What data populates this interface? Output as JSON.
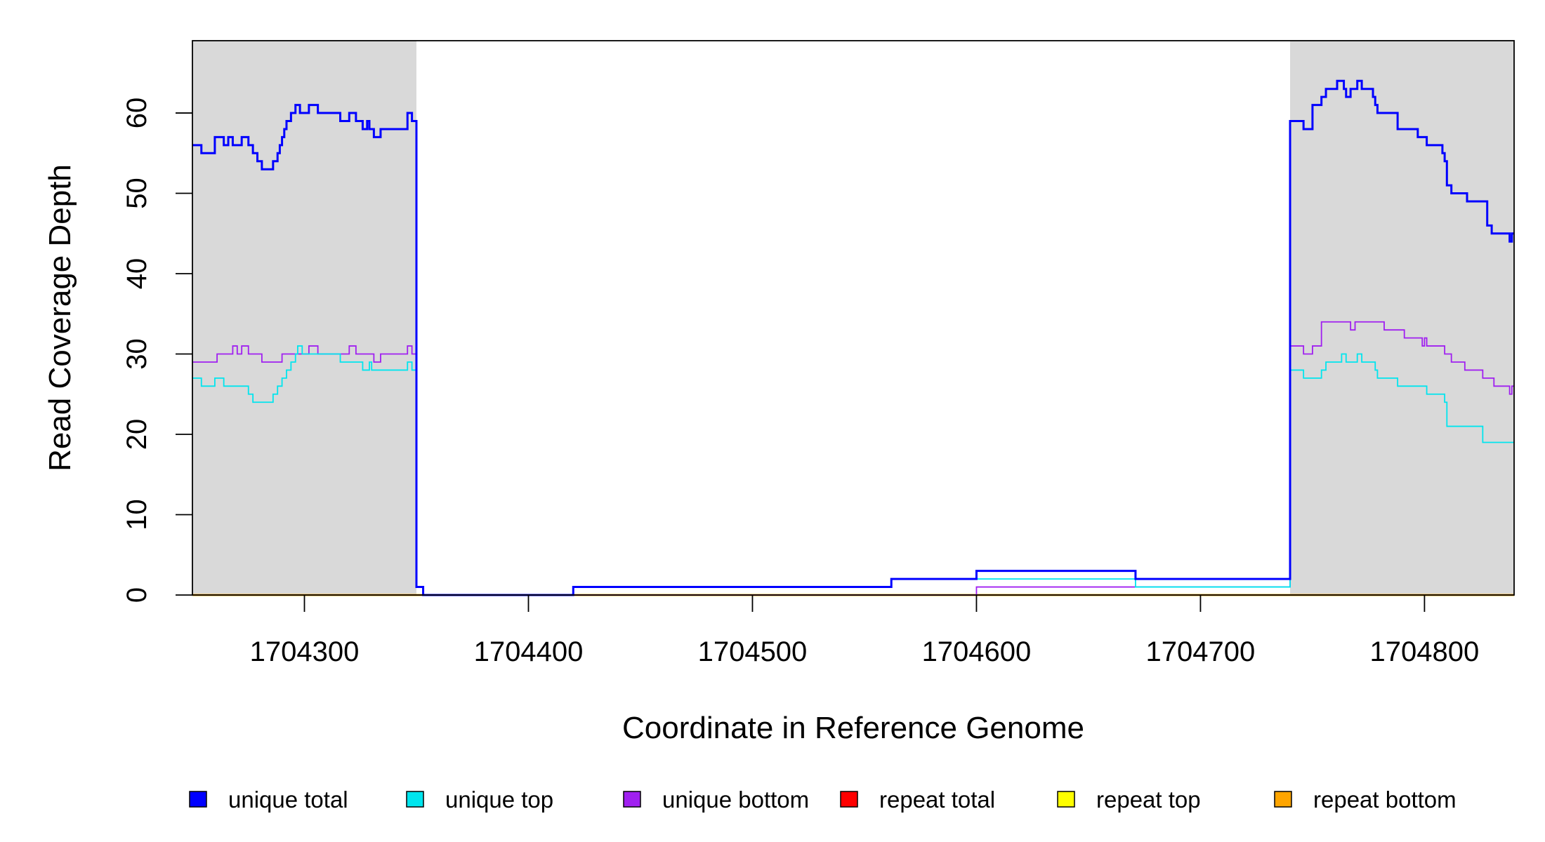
{
  "chart_data": {
    "type": "line",
    "title": "",
    "xlabel": "Coordinate in Reference Genome",
    "ylabel": "Read Coverage Depth",
    "xlim": [
      1704250,
      1704840
    ],
    "ylim": [
      0,
      69
    ],
    "xticks": [
      1704300,
      1704400,
      1704500,
      1704600,
      1704700,
      1704800
    ],
    "yticks": [
      0,
      10,
      20,
      30,
      40,
      50,
      60
    ],
    "shaded_regions": [
      [
        1704250,
        1704350
      ],
      [
        1704740,
        1704840
      ]
    ],
    "legend_position": "bottom",
    "series": [
      {
        "name": "unique total",
        "color": "#0000FF",
        "points": [
          [
            1704250,
            56
          ],
          [
            1704254,
            55
          ],
          [
            1704260,
            57
          ],
          [
            1704264,
            56
          ],
          [
            1704266,
            57
          ],
          [
            1704268,
            56
          ],
          [
            1704272,
            57
          ],
          [
            1704275,
            56
          ],
          [
            1704277,
            55
          ],
          [
            1704279,
            54
          ],
          [
            1704281,
            53
          ],
          [
            1704286,
            54
          ],
          [
            1704288,
            55
          ],
          [
            1704289,
            56
          ],
          [
            1704290,
            57
          ],
          [
            1704291,
            58
          ],
          [
            1704292,
            59
          ],
          [
            1704294,
            60
          ],
          [
            1704296,
            61
          ],
          [
            1704298,
            60
          ],
          [
            1704302,
            61
          ],
          [
            1704306,
            60
          ],
          [
            1704316,
            59
          ],
          [
            1704320,
            60
          ],
          [
            1704323,
            59
          ],
          [
            1704326,
            58
          ],
          [
            1704328,
            59
          ],
          [
            1704329,
            58
          ],
          [
            1704331,
            57
          ],
          [
            1704334,
            58
          ],
          [
            1704346,
            60
          ],
          [
            1704348,
            59
          ],
          [
            1704350,
            1
          ],
          [
            1704353,
            0
          ],
          [
            1704420,
            1
          ],
          [
            1704562,
            2
          ],
          [
            1704600,
            3
          ],
          [
            1704671,
            2
          ],
          [
            1704740,
            59
          ],
          [
            1704746,
            58
          ],
          [
            1704750,
            61
          ],
          [
            1704754,
            62
          ],
          [
            1704756,
            63
          ],
          [
            1704761,
            64
          ],
          [
            1704764,
            63
          ],
          [
            1704765,
            62
          ],
          [
            1704767,
            63
          ],
          [
            1704770,
            64
          ],
          [
            1704772,
            63
          ],
          [
            1704777,
            62
          ],
          [
            1704778,
            61
          ],
          [
            1704779,
            60
          ],
          [
            1704788,
            58
          ],
          [
            1704797,
            57
          ],
          [
            1704801,
            56
          ],
          [
            1704808,
            55
          ],
          [
            1704809,
            54
          ],
          [
            1704810,
            51
          ],
          [
            1704812,
            50
          ],
          [
            1704819,
            49
          ],
          [
            1704828,
            46
          ],
          [
            1704830,
            45
          ],
          [
            1704838,
            44
          ],
          [
            1704839,
            45
          ],
          [
            1704840,
            45
          ]
        ]
      },
      {
        "name": "unique top",
        "color": "#00E5EE",
        "points": [
          [
            1704250,
            27
          ],
          [
            1704254,
            26
          ],
          [
            1704260,
            27
          ],
          [
            1704264,
            26
          ],
          [
            1704275,
            25
          ],
          [
            1704277,
            24
          ],
          [
            1704286,
            25
          ],
          [
            1704288,
            26
          ],
          [
            1704290,
            27
          ],
          [
            1704292,
            28
          ],
          [
            1704294,
            29
          ],
          [
            1704296,
            30
          ],
          [
            1704297,
            31
          ],
          [
            1704299,
            30
          ],
          [
            1704316,
            29
          ],
          [
            1704326,
            28
          ],
          [
            1704329,
            29
          ],
          [
            1704330,
            28
          ],
          [
            1704346,
            29
          ],
          [
            1704348,
            28
          ],
          [
            1704350,
            1
          ],
          [
            1704353,
            0
          ],
          [
            1704420,
            1
          ],
          [
            1704562,
            2
          ],
          [
            1704671,
            1
          ],
          [
            1704740,
            28
          ],
          [
            1704746,
            27
          ],
          [
            1704754,
            28
          ],
          [
            1704756,
            29
          ],
          [
            1704763,
            30
          ],
          [
            1704765,
            29
          ],
          [
            1704770,
            30
          ],
          [
            1704772,
            29
          ],
          [
            1704778,
            28
          ],
          [
            1704779,
            27
          ],
          [
            1704788,
            26
          ],
          [
            1704801,
            25
          ],
          [
            1704809,
            24
          ],
          [
            1704810,
            21
          ],
          [
            1704826,
            19
          ],
          [
            1704840,
            19
          ]
        ]
      },
      {
        "name": "unique bottom",
        "color": "#A020F0",
        "points": [
          [
            1704250,
            29
          ],
          [
            1704261,
            30
          ],
          [
            1704268,
            31
          ],
          [
            1704270,
            30
          ],
          [
            1704272,
            31
          ],
          [
            1704275,
            30
          ],
          [
            1704281,
            29
          ],
          [
            1704290,
            30
          ],
          [
            1704302,
            31
          ],
          [
            1704306,
            30
          ],
          [
            1704320,
            31
          ],
          [
            1704323,
            30
          ],
          [
            1704331,
            29
          ],
          [
            1704334,
            30
          ],
          [
            1704346,
            31
          ],
          [
            1704348,
            30
          ],
          [
            1704350,
            1
          ],
          [
            1704353,
            0
          ],
          [
            1704600,
            1
          ],
          [
            1704740,
            31
          ],
          [
            1704746,
            30
          ],
          [
            1704750,
            31
          ],
          [
            1704754,
            34
          ],
          [
            1704767,
            33
          ],
          [
            1704769,
            34
          ],
          [
            1704782,
            33
          ],
          [
            1704791,
            32
          ],
          [
            1704799,
            31
          ],
          [
            1704800,
            32
          ],
          [
            1704801,
            31
          ],
          [
            1704809,
            30
          ],
          [
            1704812,
            29
          ],
          [
            1704818,
            28
          ],
          [
            1704826,
            27
          ],
          [
            1704831,
            26
          ],
          [
            1704838,
            25
          ],
          [
            1704839,
            26
          ],
          [
            1704840,
            26
          ]
        ]
      },
      {
        "name": "repeat total",
        "color": "#FF0000",
        "points": [
          [
            1704250,
            0
          ],
          [
            1704840,
            0
          ]
        ]
      },
      {
        "name": "repeat top",
        "color": "#FFFF00",
        "points": [
          [
            1704250,
            0
          ],
          [
            1704840,
            0
          ]
        ]
      },
      {
        "name": "repeat bottom",
        "color": "#FFA500",
        "points": [
          [
            1704250,
            0
          ],
          [
            1704840,
            0
          ]
        ]
      }
    ]
  }
}
